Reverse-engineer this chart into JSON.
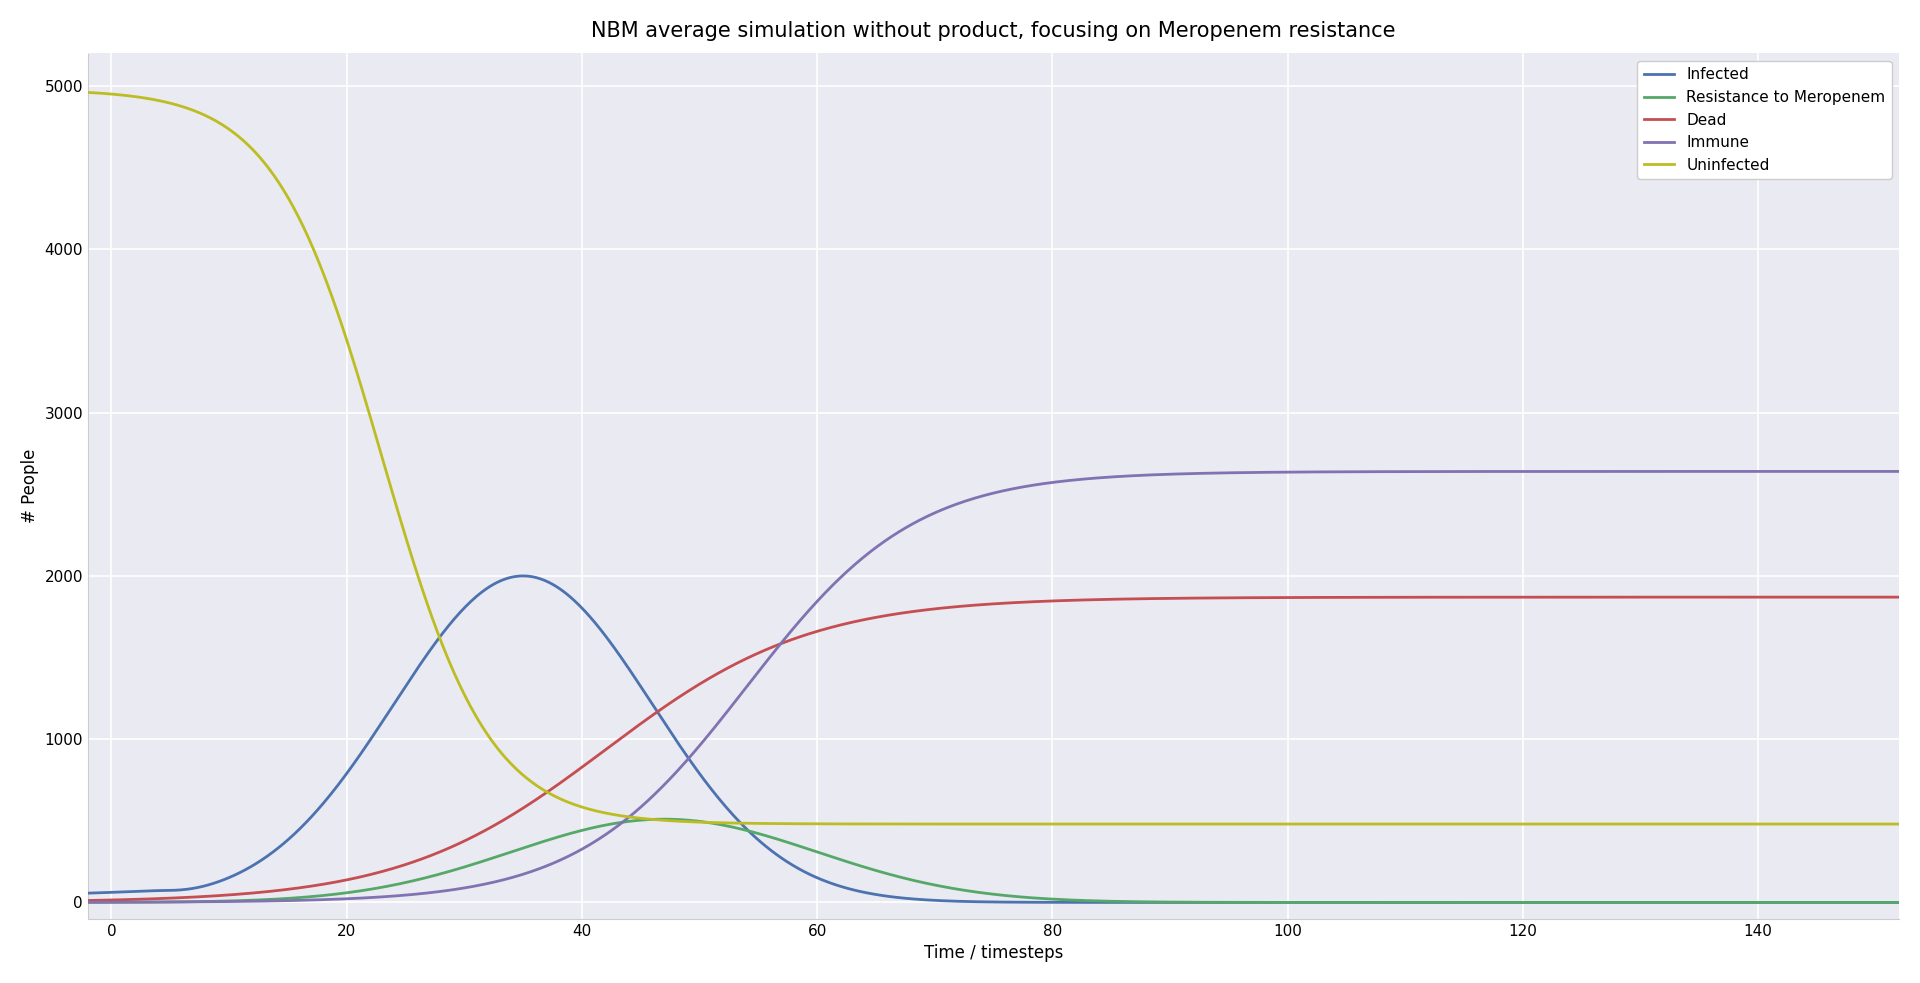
{
  "title": "NBM average simulation without product, focusing on Meropenem resistance",
  "xlabel": "Time / timesteps",
  "ylabel": "# People",
  "xlim": [
    -2,
    152
  ],
  "ylim": [
    -100,
    5200
  ],
  "yticks": [
    0,
    1000,
    2000,
    3000,
    4000,
    5000
  ],
  "xticks": [
    0,
    20,
    40,
    60,
    80,
    100,
    120,
    140
  ],
  "lines": {
    "Infected": {
      "color": "#4c72b0"
    },
    "Resistance to Meropenem": {
      "color": "#55a868"
    },
    "Dead": {
      "color": "#c44e52"
    },
    "Immune": {
      "color": "#8172b2"
    },
    "Uninfected": {
      "color": "#bcbd22"
    }
  },
  "fig_facecolor": "#ffffff",
  "axes_facecolor": "#eaeaf2",
  "grid_color": "#ffffff",
  "title_fontsize": 15,
  "axes_label_fontsize": 12,
  "tick_fontsize": 11,
  "legend_fontsize": 11,
  "line_width": 2.0,
  "curve_params": {
    "infected": {
      "peak_t": 35,
      "peak_v": 2000,
      "sigma": 11,
      "base": 50,
      "base_sigma": 8
    },
    "resistance": {
      "peak_t": 47,
      "peak_v": 510,
      "sigma": 13
    },
    "dead": {
      "mid": 42,
      "k": 0.115,
      "max_v": 1870
    },
    "immune": {
      "mid": 54,
      "k": 0.14,
      "max_v": 2640
    },
    "uninfected": {
      "mid": 23,
      "k": 0.22,
      "min_v": 480,
      "max_v": 4980
    }
  }
}
